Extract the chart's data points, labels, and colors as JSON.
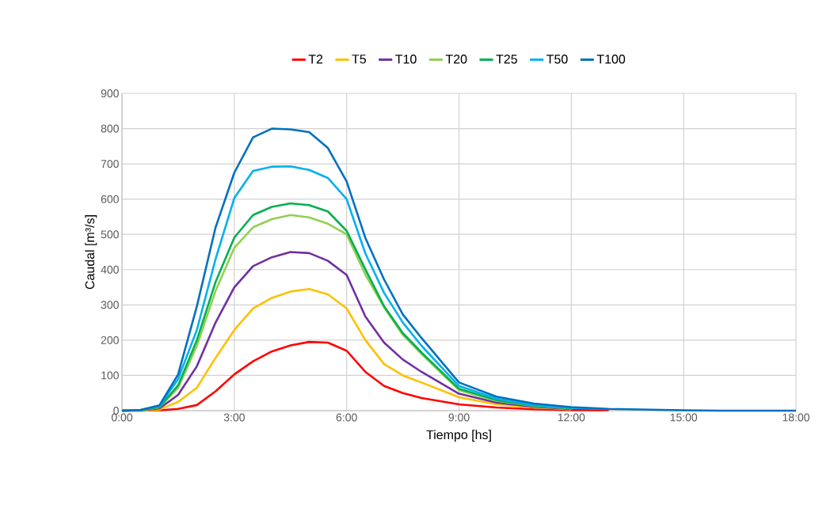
{
  "chart_data": {
    "type": "line",
    "xlabel": "Tiempo [hs]",
    "ylabel": "Caudal [m³/s]",
    "x": [
      0,
      0.5,
      1,
      1.5,
      2,
      2.5,
      3,
      3.5,
      4,
      4.5,
      5,
      5.5,
      6,
      6.5,
      7,
      7.5,
      8,
      9,
      10,
      11,
      12,
      13,
      14,
      15,
      16,
      18
    ],
    "series": [
      {
        "name": "T2",
        "color": "#ff0000",
        "values": [
          0,
          0,
          1,
          5,
          16,
          55,
          103,
          140,
          168,
          185,
          195,
          193,
          170,
          110,
          70,
          50,
          36,
          18,
          9,
          4,
          2,
          1,
          null,
          null,
          null,
          null
        ]
      },
      {
        "name": "T5",
        "color": "#ffc000",
        "values": [
          0,
          0,
          3,
          25,
          65,
          150,
          229,
          290,
          320,
          338,
          345,
          330,
          290,
          200,
          132,
          100,
          80,
          38,
          18,
          9,
          4,
          null,
          null,
          null,
          null,
          null
        ]
      },
      {
        "name": "T10",
        "color": "#7030a0",
        "values": [
          0,
          1,
          6,
          45,
          126,
          250,
          350,
          410,
          435,
          450,
          447,
          425,
          385,
          267,
          193,
          145,
          110,
          48,
          23,
          11,
          5,
          null,
          null,
          null,
          null,
          null
        ]
      },
      {
        "name": "T20",
        "color": "#92d050",
        "values": [
          0,
          1,
          9,
          65,
          184,
          340,
          462,
          520,
          543,
          555,
          548,
          530,
          500,
          386,
          293,
          215,
          161,
          58,
          28,
          13,
          6,
          null,
          null,
          null,
          null,
          null
        ]
      },
      {
        "name": "T25",
        "color": "#00b050",
        "values": [
          0,
          1,
          10,
          72,
          200,
          365,
          491,
          555,
          578,
          588,
          583,
          565,
          510,
          401,
          296,
          220,
          165,
          62,
          30,
          14,
          7,
          null,
          null,
          null,
          null,
          null
        ]
      },
      {
        "name": "T50",
        "color": "#00b0f0",
        "values": [
          0,
          2,
          13,
          90,
          229,
          430,
          603,
          680,
          692,
          693,
          683,
          660,
          600,
          446,
          334,
          250,
          184,
          70,
          34,
          16,
          8,
          4,
          null,
          null,
          null,
          null
        ]
      },
      {
        "name": "T100",
        "color": "#0070c0",
        "values": [
          0,
          2,
          15,
          103,
          296,
          520,
          675,
          775,
          800,
          798,
          790,
          745,
          650,
          490,
          372,
          273,
          206,
          80,
          40,
          20,
          10,
          5,
          3,
          1,
          0,
          0
        ]
      }
    ],
    "xlim": [
      0,
      18
    ],
    "xticks": [
      {
        "value": 0,
        "label": "0:00"
      },
      {
        "value": 3,
        "label": "3:00"
      },
      {
        "value": 6,
        "label": "6:00"
      },
      {
        "value": 9,
        "label": "9:00"
      },
      {
        "value": 12,
        "label": "12:00"
      },
      {
        "value": 15,
        "label": "15:00"
      },
      {
        "value": 18,
        "label": "18:00"
      }
    ],
    "ylim": [
      0,
      900
    ],
    "yticks": [
      0,
      100,
      200,
      300,
      400,
      500,
      600,
      700,
      800,
      900
    ],
    "grid": true,
    "legend": "top"
  }
}
